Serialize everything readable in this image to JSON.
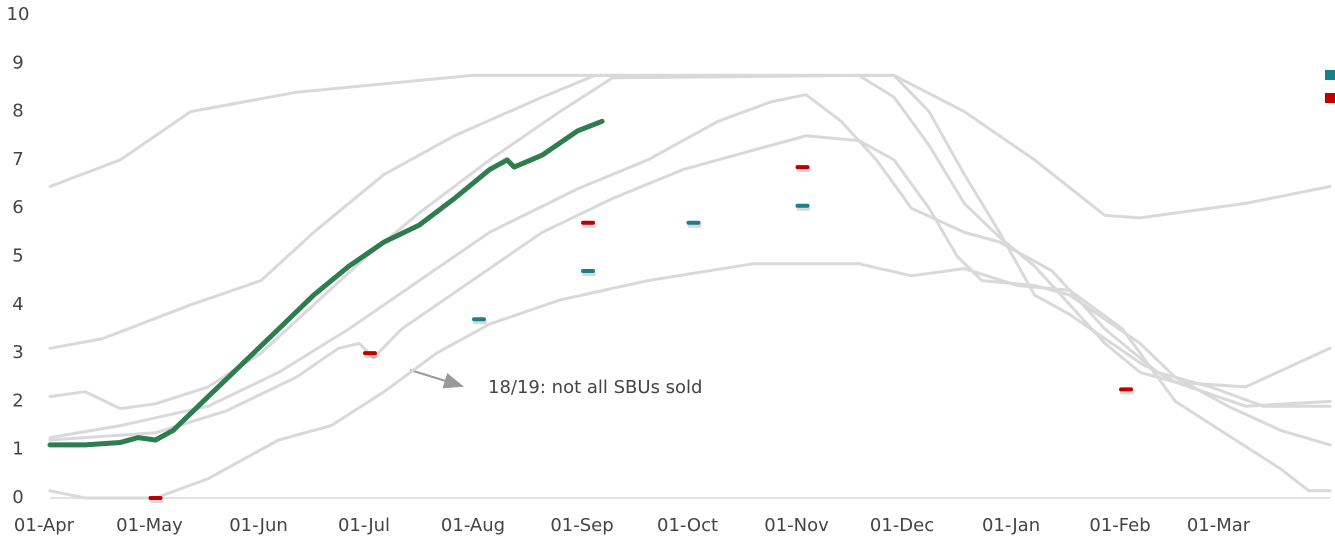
{
  "chart_data": {
    "type": "line",
    "xlim": [
      0,
      364
    ],
    "ylim": [
      0,
      10
    ],
    "yticks": [
      0,
      1,
      2,
      3,
      4,
      5,
      6,
      7,
      8,
      9,
      10
    ],
    "xticks": [
      {
        "value": 0,
        "label": "01-Apr"
      },
      {
        "value": 30,
        "label": "01-May"
      },
      {
        "value": 61,
        "label": "01-Jun"
      },
      {
        "value": 91,
        "label": "01-Jul"
      },
      {
        "value": 122,
        "label": "01-Aug"
      },
      {
        "value": 153,
        "label": "01-Sep"
      },
      {
        "value": 183,
        "label": "01-Oct"
      },
      {
        "value": 214,
        "label": "01-Nov"
      },
      {
        "value": 244,
        "label": "01-Dec"
      },
      {
        "value": 275,
        "label": "01-Jan"
      },
      {
        "value": 306,
        "label": "01-Feb"
      },
      {
        "value": 334,
        "label": "01-Mar"
      }
    ],
    "annotation": "18/19: not all SBUs sold",
    "series": [
      {
        "color": "#d9d9d9",
        "x": [
          0,
          20,
          40,
          70,
          120,
          180,
          240,
          260,
          280,
          300,
          310,
          320,
          340,
          364
        ],
        "values": [
          6.45,
          7.0,
          8.0,
          8.4,
          8.75,
          8.75,
          8.75,
          8.0,
          7.0,
          5.85,
          5.8,
          5.9,
          6.1,
          6.45
        ]
      },
      {
        "color": "#d9d9d9",
        "x": [
          0,
          15,
          40,
          60,
          75,
          95,
          115,
          140,
          155,
          200,
          240,
          250,
          260,
          270,
          280,
          290,
          300,
          310,
          320,
          340,
          364
        ],
        "values": [
          3.1,
          3.3,
          4.0,
          4.5,
          5.5,
          6.7,
          7.5,
          8.3,
          8.75,
          8.75,
          8.75,
          8.0,
          6.7,
          5.5,
          4.2,
          3.8,
          3.3,
          2.8,
          2.4,
          2.3,
          3.1
        ]
      },
      {
        "color": "#d9d9d9",
        "x": [
          0,
          10,
          20,
          30,
          45,
          60,
          75,
          90,
          105,
          125,
          145,
          160,
          230,
          240,
          250,
          260,
          270,
          280,
          290,
          300,
          310,
          320,
          340,
          364
        ],
        "values": [
          2.1,
          2.2,
          1.85,
          1.95,
          2.3,
          3.0,
          4.0,
          5.0,
          5.9,
          7.0,
          8.0,
          8.7,
          8.75,
          8.3,
          7.3,
          6.1,
          5.4,
          4.8,
          4.0,
          3.2,
          2.6,
          2.4,
          1.9,
          2.0
        ]
      },
      {
        "color": "#d9d9d9",
        "x": [
          0,
          20,
          45,
          65,
          85,
          105,
          125,
          150,
          170,
          190,
          205,
          215,
          225,
          235,
          245,
          260,
          270,
          285,
          300,
          315,
          330,
          345,
          364
        ],
        "values": [
          1.25,
          1.5,
          1.9,
          2.6,
          3.5,
          4.5,
          5.5,
          6.4,
          7.0,
          7.8,
          8.2,
          8.35,
          7.8,
          7.0,
          6.0,
          5.5,
          5.3,
          4.7,
          3.5,
          2.6,
          2.3,
          1.9,
          1.9
        ]
      },
      {
        "color": "#d9d9d9",
        "x": [
          0,
          30,
          50,
          70,
          82,
          88,
          92,
          100,
          120,
          140,
          160,
          180,
          200,
          215,
          230,
          240,
          250,
          258,
          265,
          280,
          290,
          300,
          310,
          320,
          335,
          350,
          364
        ],
        "values": [
          1.2,
          1.35,
          1.8,
          2.5,
          3.1,
          3.2,
          2.9,
          3.5,
          4.5,
          5.5,
          6.2,
          6.8,
          7.2,
          7.5,
          7.4,
          7.0,
          6.0,
          5.0,
          4.5,
          4.4,
          4.2,
          3.7,
          3.2,
          2.5,
          1.9,
          1.4,
          1.1
        ]
      },
      {
        "color": "#d9d9d9",
        "x": [
          0,
          10,
          30,
          45,
          65,
          80,
          95,
          110,
          125,
          145,
          170,
          200,
          230,
          245,
          260,
          275,
          290,
          305,
          320,
          335,
          350,
          358,
          364
        ],
        "values": [
          0.15,
          0,
          0,
          0.4,
          1.2,
          1.5,
          2.2,
          3.0,
          3.6,
          4.1,
          4.5,
          4.85,
          4.85,
          4.6,
          4.75,
          4.4,
          4.3,
          3.5,
          2.0,
          1.3,
          0.6,
          0.15,
          0.15
        ]
      },
      {
        "color": "#2e7d4f",
        "x": [
          0,
          10,
          20,
          25,
          30,
          35,
          45,
          55,
          65,
          75,
          85,
          95,
          105,
          115,
          125,
          130,
          132,
          140,
          150,
          157
        ],
        "values": [
          1.1,
          1.1,
          1.15,
          1.25,
          1.2,
          1.4,
          2.1,
          2.8,
          3.5,
          4.2,
          4.8,
          5.3,
          5.65,
          6.2,
          6.8,
          7.0,
          6.85,
          7.1,
          7.6,
          7.8
        ]
      },
      {
        "type": "scatter",
        "color": "#1a7f86",
        "x": [
          122,
          153,
          183,
          214
        ],
        "values": [
          3.7,
          4.7,
          5.7,
          6.05
        ]
      },
      {
        "type": "scatter",
        "color": "#c00000",
        "x": [
          30,
          91,
          153,
          214,
          306
        ],
        "values": [
          0,
          3.0,
          5.7,
          6.85,
          2.25
        ]
      }
    ]
  }
}
